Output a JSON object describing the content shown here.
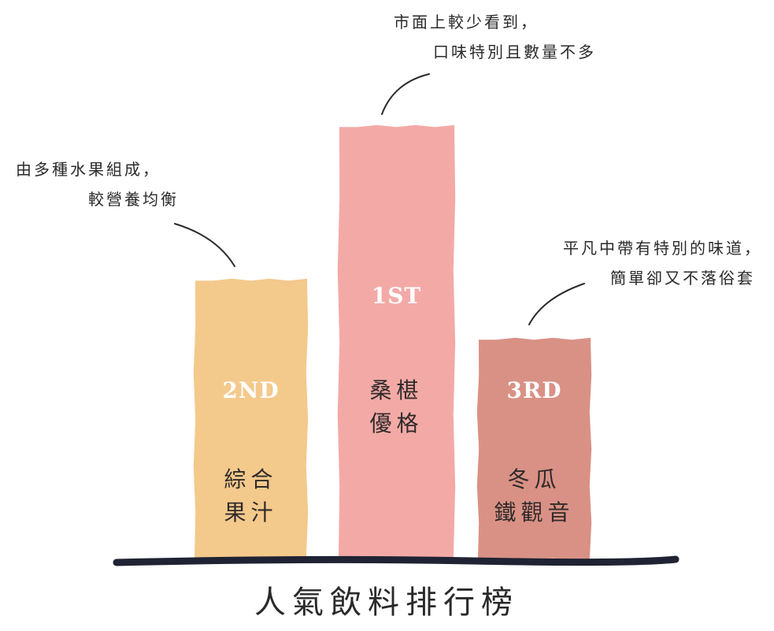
{
  "chart_data": {
    "type": "bar",
    "title": "人氣飲料排行榜",
    "categories": [
      "綜合果汁",
      "桑椹優格",
      "冬瓜鐵觀音"
    ],
    "bars": [
      {
        "rank": "2ND",
        "name_lines": [
          "綜合",
          "果汁"
        ],
        "value": 355,
        "color": "#f4c98c",
        "note_lines": [
          "由多種水果組成，",
          "較營養均衡"
        ]
      },
      {
        "rank": "1ST",
        "name_lines": [
          "桑椹",
          "優格"
        ],
        "value": 550,
        "color": "#f3aaa6",
        "note_lines": [
          "市面上較少看到，",
          "口味特別且數量不多"
        ]
      },
      {
        "rank": "3RD",
        "name_lines": [
          "冬瓜",
          "鐵觀音"
        ],
        "value": 280,
        "color": "#d99185",
        "note_lines": [
          "平凡中帶有特別的味道，",
          "簡單卻又不落俗套"
        ]
      }
    ],
    "ylim": [
      0,
      600
    ],
    "grid": false,
    "baseline_color": "#1f2333"
  }
}
